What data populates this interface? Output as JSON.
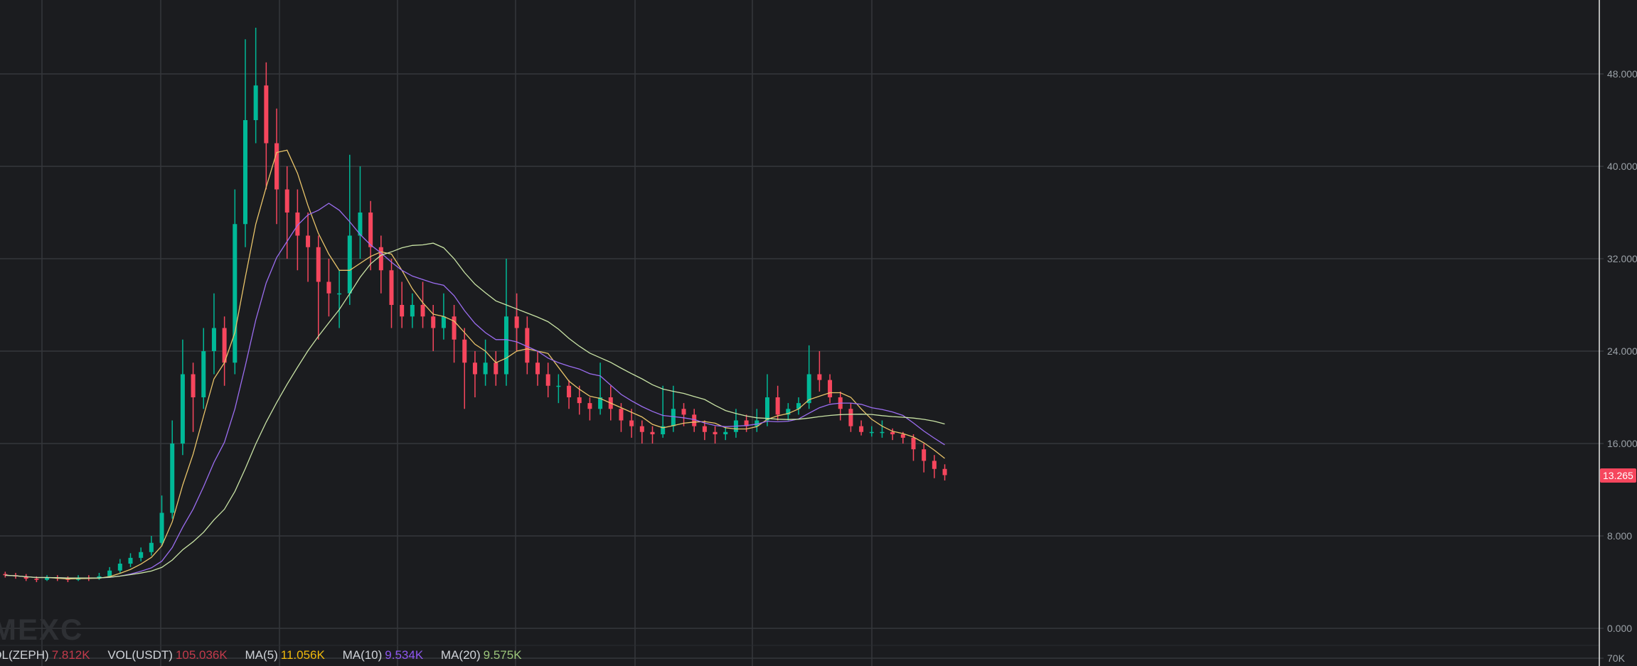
{
  "chart_data": {
    "type": "candlestick",
    "title": "",
    "y_ticks": [
      "0.000",
      "8.000",
      "16.000",
      "24.000",
      "32.000",
      "40.000",
      "48.000"
    ],
    "y_tick_values": [
      0,
      8,
      16,
      24,
      32,
      40,
      48
    ],
    "ylim": [
      0,
      53.5
    ],
    "grid": true,
    "last_price": "13.265",
    "volume_tick": "70K",
    "colors": {
      "up": "#00b897",
      "down": "#f6465d",
      "ma5": "#e9c46a",
      "ma10": "#9b6df0",
      "ma20": "#c9e3a5",
      "grid": "#35373b",
      "background": "#1b1c1f",
      "axis_text": "#9aa0a6"
    },
    "ohlc": [
      [
        4.7,
        4.9,
        4.4,
        4.6
      ],
      [
        4.6,
        4.8,
        4.3,
        4.5
      ],
      [
        4.5,
        4.7,
        4.1,
        4.3
      ],
      [
        4.3,
        4.5,
        4.0,
        4.2
      ],
      [
        4.2,
        4.6,
        4.1,
        4.4
      ],
      [
        4.4,
        4.6,
        4.1,
        4.3
      ],
      [
        4.3,
        4.5,
        4.0,
        4.2
      ],
      [
        4.2,
        4.6,
        4.1,
        4.4
      ],
      [
        4.4,
        4.6,
        4.1,
        4.3
      ],
      [
        4.3,
        4.8,
        4.2,
        4.5
      ],
      [
        4.5,
        5.3,
        4.4,
        5.0
      ],
      [
        5.0,
        6.0,
        4.8,
        5.6
      ],
      [
        5.6,
        6.5,
        5.3,
        6.1
      ],
      [
        6.1,
        7.0,
        5.8,
        6.6
      ],
      [
        6.6,
        8.0,
        6.3,
        7.4
      ],
      [
        7.4,
        11.5,
        7.1,
        10
      ],
      [
        10,
        18,
        9.5,
        16
      ],
      [
        16,
        25,
        15,
        22
      ],
      [
        22,
        23,
        17,
        20
      ],
      [
        20,
        26,
        19,
        24
      ],
      [
        24,
        29,
        22,
        26
      ],
      [
        26,
        27,
        21,
        23
      ],
      [
        23,
        38,
        22,
        35
      ],
      [
        35,
        51,
        33,
        44
      ],
      [
        44,
        52,
        42,
        47
      ],
      [
        47,
        49,
        38,
        42
      ],
      [
        42,
        45,
        35,
        38
      ],
      [
        38,
        40,
        32,
        36
      ],
      [
        36,
        38,
        31,
        34
      ],
      [
        34,
        36,
        30,
        33
      ],
      [
        33,
        34,
        25,
        30
      ],
      [
        30,
        32,
        27,
        29
      ],
      [
        29,
        31,
        26,
        29
      ],
      [
        29,
        41,
        28,
        34
      ],
      [
        34,
        40,
        32,
        36
      ],
      [
        36,
        37,
        31,
        33
      ],
      [
        33,
        34,
        29,
        31
      ],
      [
        31,
        32,
        26,
        28
      ],
      [
        28,
        30,
        26,
        27
      ],
      [
        27,
        29,
        26,
        28
      ],
      [
        28,
        30,
        26,
        27
      ],
      [
        27,
        28,
        24,
        26
      ],
      [
        26,
        29,
        25,
        27
      ],
      [
        27,
        28,
        23,
        25
      ],
      [
        25,
        26,
        19,
        23
      ],
      [
        23,
        24,
        20,
        22
      ],
      [
        22,
        25,
        21,
        23
      ],
      [
        23,
        24,
        21,
        22
      ],
      [
        22,
        32,
        21,
        27
      ],
      [
        27,
        29,
        24,
        26
      ],
      [
        26,
        27,
        22,
        23
      ],
      [
        23,
        24,
        21,
        22
      ],
      [
        22,
        23,
        20,
        21
      ],
      [
        21,
        22,
        19.5,
        21
      ],
      [
        21,
        21.5,
        19,
        20
      ],
      [
        20,
        21,
        18.5,
        19.5
      ],
      [
        19.5,
        20,
        18,
        19
      ],
      [
        19,
        23,
        18.5,
        20
      ],
      [
        20,
        21,
        18,
        19
      ],
      [
        19,
        19.5,
        17,
        18
      ],
      [
        18,
        19,
        16.5,
        17.5
      ],
      [
        17.5,
        18,
        16,
        17
      ],
      [
        17,
        17.5,
        16,
        16.8
      ],
      [
        16.8,
        21,
        16.5,
        17.5
      ],
      [
        17.5,
        21,
        17,
        19
      ],
      [
        19,
        19.5,
        17.5,
        18.5
      ],
      [
        18.5,
        19,
        17,
        17.5
      ],
      [
        17.5,
        18,
        16.3,
        17
      ],
      [
        17,
        17.5,
        16,
        16.8
      ],
      [
        16.8,
        17.5,
        16.3,
        17
      ],
      [
        17,
        19,
        16.5,
        18
      ],
      [
        18,
        18.5,
        17,
        17.5
      ],
      [
        17.5,
        19,
        17,
        18
      ],
      [
        18,
        22,
        17.5,
        20
      ],
      [
        20,
        21,
        18,
        18.5
      ],
      [
        18.5,
        19.5,
        18,
        19
      ],
      [
        19,
        20,
        18.5,
        19.5
      ],
      [
        19.5,
        24.5,
        19,
        22
      ],
      [
        22,
        24,
        20.5,
        21.5
      ],
      [
        21.5,
        22,
        19.5,
        20
      ],
      [
        20,
        20.5,
        18,
        19
      ],
      [
        19,
        19.5,
        17,
        17.5
      ],
      [
        17.5,
        18,
        16.7,
        17
      ],
      [
        17,
        17.5,
        16.6,
        17
      ],
      [
        17,
        18,
        16.5,
        17
      ],
      [
        17,
        17.3,
        16.3,
        16.8
      ],
      [
        16.8,
        17,
        16,
        16.5
      ],
      [
        16.5,
        16.8,
        14.5,
        15.5
      ],
      [
        15.5,
        16,
        13.5,
        14.5
      ],
      [
        14.5,
        15,
        13,
        13.8
      ],
      [
        13.8,
        14.2,
        12.8,
        13.265
      ]
    ],
    "legend": {
      "vol_base_label": "VOL(ZEPH)",
      "vol_base_value": "7.812K",
      "vol_quote_label": "VOL(USDT)",
      "vol_quote_value": "105.036K",
      "ma5_label": "MA(5)",
      "ma5_value": "11.056K",
      "ma10_label": "MA(10)",
      "ma10_value": "9.534K",
      "ma20_label": "MA(20)",
      "ma20_value": "9.575K"
    }
  },
  "watermark": "MEXC"
}
